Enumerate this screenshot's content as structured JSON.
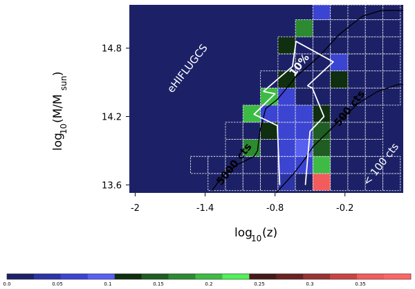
{
  "chart_data": {
    "type": "heatmap",
    "xlabel": "log10(z)",
    "ylabel": "log10(M/Msun)",
    "x_ticks": [
      "-2",
      "-1.4",
      "-0.8",
      "-0.2"
    ],
    "x_tick_values": [
      -2.0,
      -1.4,
      -0.8,
      -0.2
    ],
    "y_ticks": [
      "13.6",
      "14.2",
      "14.8"
    ],
    "y_tick_values": [
      13.6,
      14.2,
      14.8
    ],
    "xlim": [
      -2.05,
      0.3
    ],
    "ylim": [
      13.53,
      15.18
    ],
    "bin_width_x": 0.15,
    "bin_width_y": 0.15,
    "background_color": "#1c2167",
    "colorbar": {
      "min": 0.0,
      "max": 0.4,
      "tick_labels": [
        "0.0",
        "0.05",
        "0.1",
        "0.15",
        "0.2",
        "0.25",
        "0.3",
        "0.35"
      ],
      "tick_values": [
        0.0,
        0.05,
        0.1,
        0.15,
        0.2,
        0.25,
        0.3,
        0.35
      ],
      "colors": [
        "#1c2167",
        "#2c34a6",
        "#3c44d2",
        "#5860f0",
        "#102e10",
        "#1f5d22",
        "#2c8a31",
        "#3dbb44",
        "#52f058",
        "#451a1a",
        "#6a2222",
        "#9a3333",
        "#c84444",
        "#f25c5c",
        "#ff6565"
      ]
    },
    "cells": [
      {
        "x": -1.3,
        "y": 13.625,
        "v": 0.0
      },
      {
        "x": -1.15,
        "y": 13.625,
        "v": 0.0
      },
      {
        "x": -1.0,
        "y": 13.625,
        "v": 0.0
      },
      {
        "x": -0.85,
        "y": 13.625,
        "v": 0.0
      },
      {
        "x": -0.7,
        "y": 13.625,
        "v": 0.05
      },
      {
        "x": -0.55,
        "y": 13.625,
        "v": 0.0
      },
      {
        "x": -0.4,
        "y": 13.625,
        "v": 0.37
      },
      {
        "x": -0.25,
        "y": 13.625,
        "v": 0.0
      },
      {
        "x": -0.1,
        "y": 13.625,
        "v": 0.0
      },
      {
        "x": 0.05,
        "y": 13.625,
        "v": 0.0
      },
      {
        "x": 0.2,
        "y": 13.625,
        "v": 0.0
      },
      {
        "x": -1.45,
        "y": 13.775,
        "v": 0.0
      },
      {
        "x": -1.3,
        "y": 13.775,
        "v": 0.0
      },
      {
        "x": -1.15,
        "y": 13.775,
        "v": 0.0
      },
      {
        "x": -1.0,
        "y": 13.775,
        "v": 0.0
      },
      {
        "x": -0.85,
        "y": 13.775,
        "v": 0.0
      },
      {
        "x": -0.7,
        "y": 13.775,
        "v": 0.07
      },
      {
        "x": -0.55,
        "y": 13.775,
        "v": 0.06
      },
      {
        "x": -0.4,
        "y": 13.775,
        "v": 0.2
      },
      {
        "x": -0.25,
        "y": 13.775,
        "v": 0.0
      },
      {
        "x": -0.1,
        "y": 13.775,
        "v": 0.0
      },
      {
        "x": 0.05,
        "y": 13.775,
        "v": 0.0
      },
      {
        "x": 0.2,
        "y": 13.775,
        "v": 0.0
      },
      {
        "x": -1.15,
        "y": 13.925,
        "v": 0.0
      },
      {
        "x": -1.0,
        "y": 13.925,
        "v": 0.17
      },
      {
        "x": -0.85,
        "y": 13.925,
        "v": 0.0
      },
      {
        "x": -0.7,
        "y": 13.925,
        "v": 0.08
      },
      {
        "x": -0.55,
        "y": 13.925,
        "v": 0.09
      },
      {
        "x": -0.4,
        "y": 13.925,
        "v": 0.16
      },
      {
        "x": -0.25,
        "y": 13.925,
        "v": 0.0
      },
      {
        "x": -0.1,
        "y": 13.925,
        "v": 0.0
      },
      {
        "x": 0.05,
        "y": 13.925,
        "v": 0.0
      },
      {
        "x": -1.15,
        "y": 14.075,
        "v": 0.0
      },
      {
        "x": -1.0,
        "y": 14.075,
        "v": 0.0
      },
      {
        "x": -0.85,
        "y": 14.075,
        "v": 0.11
      },
      {
        "x": -0.7,
        "y": 14.075,
        "v": 0.07
      },
      {
        "x": -0.55,
        "y": 14.075,
        "v": 0.08
      },
      {
        "x": -0.4,
        "y": 14.075,
        "v": 0.14
      },
      {
        "x": -0.25,
        "y": 14.075,
        "v": 0.0
      },
      {
        "x": -0.1,
        "y": 14.075,
        "v": 0.0
      },
      {
        "x": 0.05,
        "y": 14.075,
        "v": 0.0
      },
      {
        "x": -1.0,
        "y": 14.225,
        "v": 0.21
      },
      {
        "x": -0.85,
        "y": 14.225,
        "v": 0.08
      },
      {
        "x": -0.7,
        "y": 14.225,
        "v": 0.06
      },
      {
        "x": -0.55,
        "y": 14.225,
        "v": 0.06
      },
      {
        "x": -0.4,
        "y": 14.225,
        "v": 0.11
      },
      {
        "x": -0.25,
        "y": 14.225,
        "v": 0.0
      },
      {
        "x": -0.1,
        "y": 14.225,
        "v": 0.0
      },
      {
        "x": 0.05,
        "y": 14.225,
        "v": 0.0
      },
      {
        "x": -0.85,
        "y": 14.375,
        "v": 0.2
      },
      {
        "x": -0.7,
        "y": 14.375,
        "v": 0.06
      },
      {
        "x": -0.55,
        "y": 14.375,
        "v": 0.0
      },
      {
        "x": -0.4,
        "y": 14.375,
        "v": 0.0
      },
      {
        "x": -0.25,
        "y": 14.375,
        "v": 0.0
      },
      {
        "x": -0.1,
        "y": 14.375,
        "v": 0.0
      },
      {
        "x": 0.05,
        "y": 14.375,
        "v": 0.0
      },
      {
        "x": 0.2,
        "y": 14.375,
        "v": 0.0
      },
      {
        "x": -0.85,
        "y": 14.525,
        "v": 0.0
      },
      {
        "x": -0.7,
        "y": 14.525,
        "v": 0.11
      },
      {
        "x": -0.55,
        "y": 14.525,
        "v": 0.0
      },
      {
        "x": -0.4,
        "y": 14.525,
        "v": 0.0
      },
      {
        "x": -0.25,
        "y": 14.525,
        "v": 0.11
      },
      {
        "x": -0.1,
        "y": 14.525,
        "v": 0.0
      },
      {
        "x": 0.05,
        "y": 14.525,
        "v": 0.0
      },
      {
        "x": 0.2,
        "y": 14.525,
        "v": 0.0
      },
      {
        "x": -0.7,
        "y": 14.675,
        "v": 0.0
      },
      {
        "x": -0.55,
        "y": 14.675,
        "v": 0.0
      },
      {
        "x": -0.4,
        "y": 14.675,
        "v": 0.0
      },
      {
        "x": -0.25,
        "y": 14.675,
        "v": 0.07
      },
      {
        "x": -0.1,
        "y": 14.675,
        "v": 0.0
      },
      {
        "x": 0.05,
        "y": 14.675,
        "v": 0.0
      },
      {
        "x": 0.2,
        "y": 14.675,
        "v": 0.0
      },
      {
        "x": -0.7,
        "y": 14.825,
        "v": 0.11
      },
      {
        "x": -0.55,
        "y": 14.825,
        "v": 0.0
      },
      {
        "x": -0.4,
        "y": 14.825,
        "v": 0.0
      },
      {
        "x": -0.25,
        "y": 14.825,
        "v": 0.0
      },
      {
        "x": -0.1,
        "y": 14.825,
        "v": 0.0
      },
      {
        "x": 0.05,
        "y": 14.825,
        "v": 0.0
      },
      {
        "x": 0.2,
        "y": 14.825,
        "v": 0.0
      },
      {
        "x": -0.55,
        "y": 14.975,
        "v": 0.18
      },
      {
        "x": -0.4,
        "y": 14.975,
        "v": 0.0
      },
      {
        "x": -0.25,
        "y": 14.975,
        "v": 0.0
      },
      {
        "x": -0.1,
        "y": 14.975,
        "v": 0.0
      },
      {
        "x": 0.05,
        "y": 14.975,
        "v": 0.0
      },
      {
        "x": 0.2,
        "y": 14.975,
        "v": 0.0
      },
      {
        "x": -0.4,
        "y": 15.125,
        "v": 0.07
      },
      {
        "x": -0.25,
        "y": 15.125,
        "v": 0.0
      },
      {
        "x": -0.1,
        "y": 15.125,
        "v": 0.0
      },
      {
        "x": 0.05,
        "y": 15.125,
        "v": 0.0
      },
      {
        "x": 0.2,
        "y": 15.125,
        "v": 0.0
      }
    ],
    "contours": [
      {
        "label": "5000 cts",
        "points": [
          [
            -1.34,
            13.55
          ],
          [
            -1.25,
            13.68
          ],
          [
            -1.12,
            13.78
          ],
          [
            -0.98,
            13.85
          ],
          [
            -0.95,
            13.9
          ],
          [
            -0.93,
            14.07
          ],
          [
            -0.88,
            14.27
          ],
          [
            -0.78,
            14.35
          ],
          [
            -0.62,
            14.55
          ],
          [
            -0.43,
            14.72
          ],
          [
            -0.25,
            14.92
          ],
          [
            -0.05,
            15.08
          ],
          [
            0.11,
            15.13
          ],
          [
            0.3,
            15.13
          ]
        ]
      },
      {
        "label": "500 cts",
        "points": [
          [
            -0.79,
            13.53
          ],
          [
            -0.64,
            13.7
          ],
          [
            -0.55,
            13.82
          ],
          [
            -0.47,
            13.94
          ],
          [
            -0.36,
            14.05
          ],
          [
            -0.23,
            14.18
          ],
          [
            -0.08,
            14.32
          ],
          [
            0.08,
            14.42
          ],
          [
            0.25,
            14.48
          ],
          [
            0.3,
            14.48
          ]
        ]
      },
      {
        "label": "10%",
        "points": [
          [
            -0.9,
            14.42
          ],
          [
            -0.65,
            14.64
          ],
          [
            -0.62,
            14.86
          ],
          [
            -0.3,
            14.68
          ],
          [
            -0.52,
            14.47
          ],
          [
            -0.48,
            14.45
          ],
          [
            -0.38,
            14.2
          ],
          [
            -0.5,
            14.07
          ],
          [
            -0.54,
            13.6
          ]
        ]
      },
      {
        "label": "10%-left",
        "points": [
          [
            -0.9,
            14.42
          ],
          [
            -0.8,
            14.4
          ],
          [
            -0.98,
            14.22
          ],
          [
            -0.78,
            14.12
          ],
          [
            -0.76,
            13.6
          ]
        ]
      }
    ],
    "annotations": [
      {
        "text": "eHIFLUGCS",
        "x": -1.55,
        "y": 14.62,
        "rotate": -52,
        "style": "white"
      },
      {
        "text": "10%",
        "x": -0.59,
        "y": 14.65,
        "rotate": -52,
        "style": "bold-white"
      },
      {
        "text": "500 cts",
        "x": -0.16,
        "y": 14.27,
        "rotate": -52,
        "style": "bold-black"
      },
      {
        "text": "5000 cts",
        "x": -1.15,
        "y": 13.78,
        "rotate": -52,
        "style": "bold-black"
      },
      {
        "text": "< 100 cts",
        "x": 0.11,
        "y": 13.78,
        "rotate": -52,
        "style": "white"
      }
    ]
  }
}
